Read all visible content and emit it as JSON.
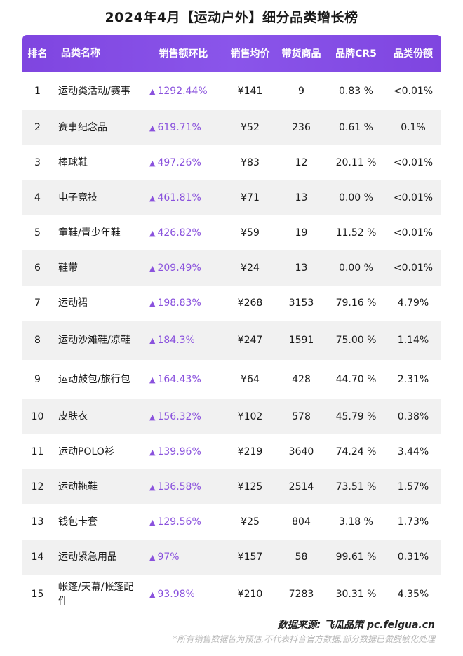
{
  "title": "2024年4月【运动户外】细分品类增长榜",
  "headers": {
    "rank": "排名",
    "name": "品类名称",
    "mom": "销售额环比",
    "avg_price": "销售均价",
    "goods": "带货商品",
    "cr5": "品牌CR5",
    "share": "品类份额"
  },
  "rows": [
    {
      "rank": "1",
      "name": "运动类活动/赛事",
      "mom": "1292.44%",
      "price": "¥141",
      "goods": "9",
      "cr5": "0.83 %",
      "share": "<0.01%"
    },
    {
      "rank": "2",
      "name": "赛事纪念品",
      "mom": "619.71%",
      "price": "¥52",
      "goods": "236",
      "cr5": "0.61 %",
      "share": "0.1%"
    },
    {
      "rank": "3",
      "name": "棒球鞋",
      "mom": "497.26%",
      "price": "¥83",
      "goods": "12",
      "cr5": "20.11 %",
      "share": "<0.01%"
    },
    {
      "rank": "4",
      "name": "电子竞技",
      "mom": "461.81%",
      "price": "¥71",
      "goods": "13",
      "cr5": "0.00 %",
      "share": "<0.01%"
    },
    {
      "rank": "5",
      "name": "童鞋/青少年鞋",
      "mom": "426.82%",
      "price": "¥59",
      "goods": "19",
      "cr5": "11.52 %",
      "share": "<0.01%"
    },
    {
      "rank": "6",
      "name": "鞋带",
      "mom": "209.49%",
      "price": "¥24",
      "goods": "13",
      "cr5": "0.00 %",
      "share": "<0.01%"
    },
    {
      "rank": "7",
      "name": "运动裙",
      "mom": "198.83%",
      "price": "¥268",
      "goods": "3153",
      "cr5": "79.16 %",
      "share": "4.79%"
    },
    {
      "rank": "8",
      "name": "运动沙滩鞋/凉鞋",
      "mom": "184.3%",
      "price": "¥247",
      "goods": "1591",
      "cr5": "75.00 %",
      "share": "1.14%"
    },
    {
      "rank": "9",
      "name": "运动鼓包/旅行包",
      "mom": "164.43%",
      "price": "¥64",
      "goods": "428",
      "cr5": "44.70 %",
      "share": "2.31%"
    },
    {
      "rank": "10",
      "name": "皮肤衣",
      "mom": "156.32%",
      "price": "¥102",
      "goods": "578",
      "cr5": "45.79 %",
      "share": "0.38%"
    },
    {
      "rank": "11",
      "name": "运动POLO衫",
      "mom": "139.96%",
      "price": "¥219",
      "goods": "3640",
      "cr5": "74.24 %",
      "share": "3.44%"
    },
    {
      "rank": "12",
      "name": "运动拖鞋",
      "mom": "136.58%",
      "price": "¥125",
      "goods": "2514",
      "cr5": "73.51 %",
      "share": "1.57%"
    },
    {
      "rank": "13",
      "name": "钱包卡套",
      "mom": "129.56%",
      "price": "¥25",
      "goods": "804",
      "cr5": "3.18 %",
      "share": "1.73%"
    },
    {
      "rank": "14",
      "name": "运动紧急用品",
      "mom": "97%",
      "price": "¥157",
      "goods": "58",
      "cr5": "99.61 %",
      "share": "0.31%"
    },
    {
      "rank": "15",
      "name": "帐篷/天幕/帐篷配件",
      "mom": "93.98%",
      "price": "¥210",
      "goods": "7283",
      "cr5": "30.31 %",
      "share": "4.35%"
    }
  ],
  "trend_icon": "up-triangle-icon",
  "accent_color": "#8a52dd",
  "source": "数据来源:  飞瓜品策  pc.feigua.cn",
  "note": "*所有销售数据皆为预估,不代表抖音官方数据,部分数据已做脱敏化处理"
}
